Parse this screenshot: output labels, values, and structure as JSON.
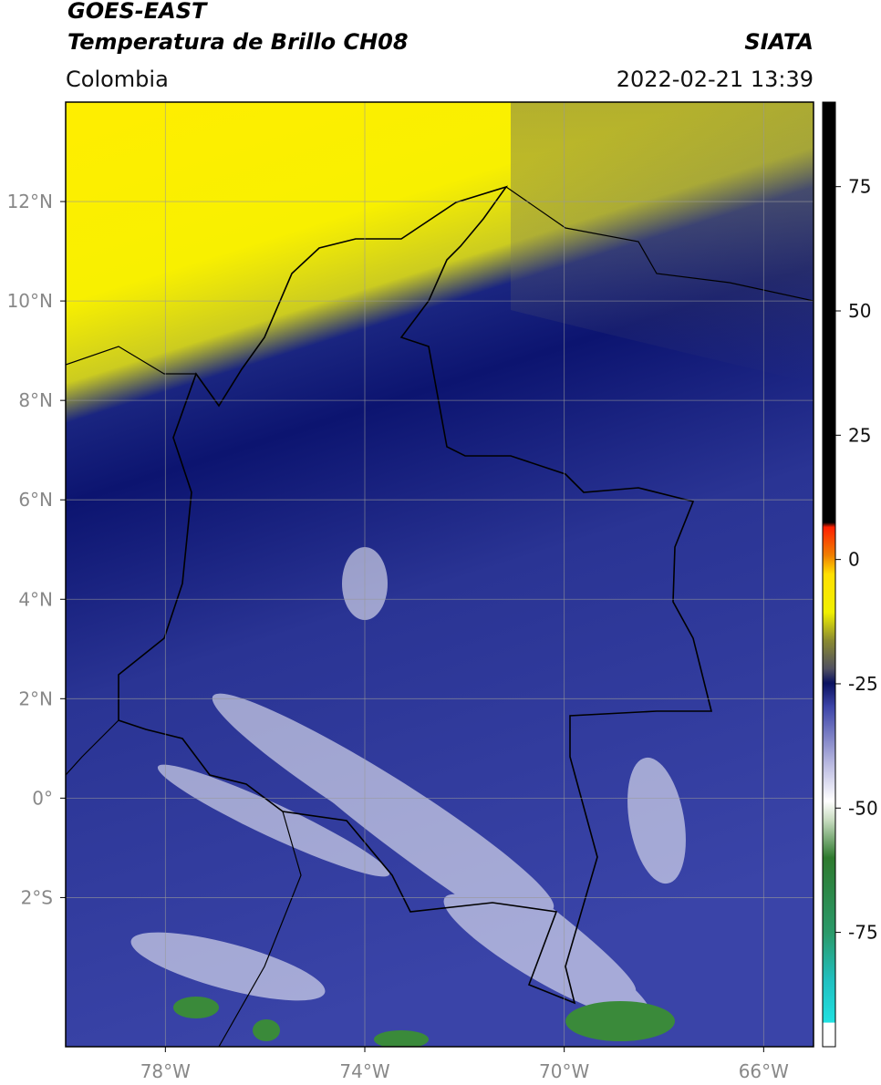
{
  "header": {
    "title": "GOES-EAST",
    "subtitle": "Temperatura de Brillo CH08",
    "source": "SIATA",
    "region": "Colombia",
    "datetime": "2022-02-21 13:39"
  },
  "map": {
    "xlim": [
      -80,
      -65
    ],
    "ylim": [
      -5,
      14
    ],
    "xticks": [
      {
        "value": -78,
        "label": "78°W"
      },
      {
        "value": -74,
        "label": "74°W"
      },
      {
        "value": -70,
        "label": "70°W"
      },
      {
        "value": -66,
        "label": "66°W"
      }
    ],
    "yticks": [
      {
        "value": 12,
        "label": "12°N"
      },
      {
        "value": 10,
        "label": "10°N"
      },
      {
        "value": 8,
        "label": "8°N"
      },
      {
        "value": 6,
        "label": "6°N"
      },
      {
        "value": 4,
        "label": "4°N"
      },
      {
        "value": 2,
        "label": "2°N"
      },
      {
        "value": 0,
        "label": "0°"
      },
      {
        "value": -2,
        "label": "2°S"
      }
    ]
  },
  "colorbar": {
    "lim": [
      -98,
      92
    ],
    "ticks": [
      75,
      50,
      25,
      0,
      -25,
      -50,
      -75
    ]
  }
}
